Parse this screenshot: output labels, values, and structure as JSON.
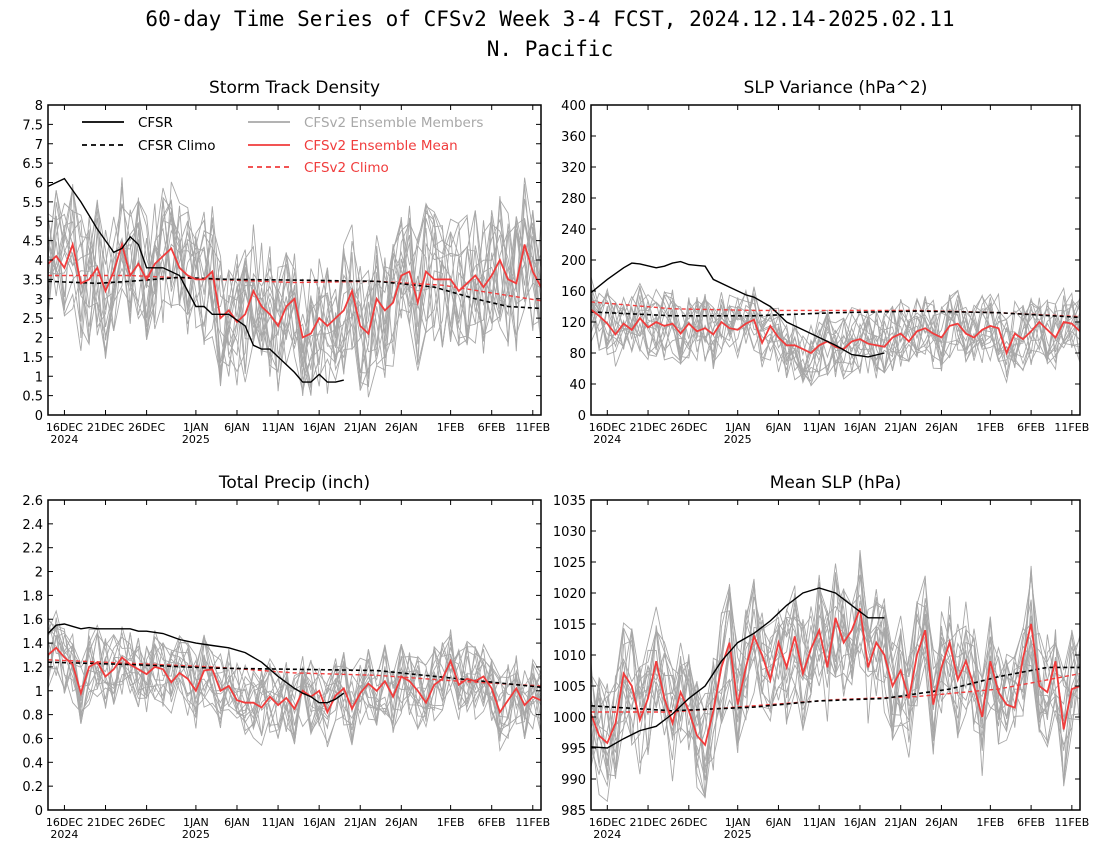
{
  "title": "60-day Time Series of CFSv2 Week 3-4 FCST, 2024.12.14-2025.02.11",
  "subtitle": "N. Pacific",
  "colors": {
    "cfsr": "#000000",
    "ensemble_member": "#a8a8a8",
    "ensemble_mean": "#f03c3c",
    "cfsv2_climo": "#f03c3c"
  },
  "legend": {
    "cfsr": "CFSR",
    "cfsr_climo": "CFSR Climo",
    "members": "CFSv2 Ensemble Members",
    "mean": "CFSv2 Ensemble Mean",
    "cfsv2_climo": "CFSv2 Climo"
  },
  "x_ticks": [
    {
      "label": "16DEC",
      "sub": "2024"
    },
    {
      "label": "21DEC",
      "sub": ""
    },
    {
      "label": "26DEC",
      "sub": ""
    },
    {
      "label": "1JAN",
      "sub": "2025"
    },
    {
      "label": "6JAN",
      "sub": ""
    },
    {
      "label": "11JAN",
      "sub": ""
    },
    {
      "label": "16JAN",
      "sub": ""
    },
    {
      "label": "21JAN",
      "sub": ""
    },
    {
      "label": "26JAN",
      "sub": ""
    },
    {
      "label": "1FEB",
      "sub": ""
    },
    {
      "label": "6FEB",
      "sub": ""
    },
    {
      "label": "11FEB",
      "sub": ""
    }
  ],
  "chart_data": [
    {
      "type": "line",
      "title": "Storm Track Density",
      "ylim": [
        0,
        8
      ],
      "yticks": [
        0,
        0.5,
        1,
        1.5,
        2,
        2.5,
        3,
        3.5,
        4,
        4.5,
        5,
        5.5,
        6,
        6.5,
        7,
        7.5,
        8
      ],
      "ytick_labels": [
        "0",
        "0.5",
        "1",
        "1.5",
        "2",
        "2.5",
        "3",
        "3.5",
        "4",
        "4.5",
        "5",
        "5.5",
        "6",
        "6.5",
        "7",
        "7.5",
        "8"
      ],
      "legend": true,
      "ensemble_spread": 1.1,
      "cfsr": {
        "days": [
          0,
          2,
          4,
          6,
          8,
          9,
          10,
          11,
          12,
          14,
          16,
          17,
          18,
          19,
          20,
          22,
          24,
          25,
          26,
          27,
          28,
          30,
          31,
          32,
          33,
          34,
          35,
          36
        ],
        "values": [
          5.9,
          6.1,
          5.5,
          4.8,
          4.2,
          4.3,
          4.6,
          4.4,
          3.8,
          3.8,
          3.6,
          3.2,
          2.8,
          2.8,
          2.6,
          2.6,
          2.3,
          1.8,
          1.7,
          1.7,
          1.5,
          1.1,
          0.85,
          0.85,
          1.05,
          0.85,
          0.85,
          0.9
        ]
      },
      "cfsr_climo": {
        "days": [
          0,
          6,
          10,
          16,
          22,
          30,
          40,
          47,
          52,
          56,
          60
        ],
        "values": [
          3.45,
          3.4,
          3.45,
          3.55,
          3.5,
          3.48,
          3.45,
          3.3,
          3.0,
          2.8,
          2.75
        ]
      },
      "cfsv2_climo": {
        "days": [
          0,
          10,
          20,
          30,
          40,
          48,
          54,
          60
        ],
        "values": [
          3.6,
          3.6,
          3.5,
          3.42,
          3.45,
          3.35,
          3.15,
          2.95
        ]
      },
      "ensemble_mean": {
        "days": [
          0,
          1,
          2,
          3,
          4,
          5,
          6,
          7,
          8,
          9,
          10,
          11,
          12,
          13,
          14,
          15,
          16,
          17,
          18,
          19,
          20,
          21,
          22,
          23,
          24,
          25,
          26,
          27,
          28,
          29,
          30,
          31,
          32,
          33,
          34,
          35,
          36,
          37,
          38,
          39,
          40,
          41,
          42,
          43,
          44,
          45,
          46,
          47,
          48,
          49,
          50,
          51,
          52,
          53,
          54,
          55,
          56,
          57,
          58,
          59,
          60
        ],
        "values": [
          3.9,
          4.1,
          3.8,
          4.4,
          3.4,
          3.5,
          3.8,
          3.2,
          3.7,
          4.4,
          3.6,
          3.9,
          3.5,
          3.9,
          4.1,
          4.3,
          3.8,
          3.6,
          3.5,
          3.5,
          3.7,
          2.5,
          2.7,
          2.4,
          2.6,
          3.2,
          2.8,
          2.6,
          2.3,
          2.8,
          3.0,
          2.0,
          2.1,
          2.5,
          2.3,
          2.5,
          2.7,
          3.2,
          2.3,
          2.1,
          3.0,
          2.7,
          2.9,
          3.6,
          3.7,
          2.9,
          3.7,
          3.5,
          3.5,
          3.5,
          3.2,
          3.4,
          3.6,
          3.3,
          3.6,
          4.0,
          3.5,
          3.4,
          4.4,
          3.7,
          3.3
        ]
      }
    },
    {
      "type": "line",
      "title": "SLP Variance (hPa^2)",
      "ylim": [
        0,
        400
      ],
      "yticks": [
        0,
        40,
        80,
        120,
        160,
        200,
        240,
        280,
        320,
        360,
        400
      ],
      "ytick_labels": [
        "0",
        "40",
        "80",
        "120",
        "160",
        "200",
        "240",
        "280",
        "320",
        "360",
        "400"
      ],
      "legend": false,
      "ensemble_spread": 28,
      "cfsr": {
        "days": [
          0,
          2,
          4,
          5,
          6,
          8,
          9,
          10,
          11,
          12,
          13,
          14,
          15,
          17,
          19,
          20,
          22,
          24,
          26,
          28,
          30,
          32,
          34,
          36
        ],
        "values": [
          158,
          175,
          190,
          196,
          195,
          190,
          192,
          196,
          198,
          194,
          193,
          192,
          175,
          165,
          155,
          152,
          140,
          120,
          110,
          100,
          90,
          78,
          75,
          80
        ]
      },
      "cfsr_climo": {
        "days": [
          0,
          10,
          20,
          30,
          40,
          50,
          60
        ],
        "values": [
          133,
          128,
          128,
          132,
          134,
          132,
          126
        ]
      },
      "cfsv2_climo": {
        "days": [
          0,
          10,
          20,
          30,
          40,
          50,
          60
        ],
        "values": [
          146,
          137,
          135,
          135,
          135,
          132,
          127
        ]
      },
      "ensemble_mean": {
        "days": [
          0,
          1,
          2,
          3,
          4,
          5,
          6,
          7,
          8,
          9,
          10,
          11,
          12,
          13,
          14,
          15,
          16,
          17,
          18,
          19,
          20,
          21,
          22,
          23,
          24,
          25,
          26,
          27,
          28,
          29,
          30,
          31,
          32,
          33,
          34,
          35,
          36,
          37,
          38,
          39,
          40,
          41,
          42,
          43,
          44,
          45,
          46,
          47,
          48,
          49,
          50,
          51,
          52,
          53,
          54,
          55,
          56,
          57,
          58,
          59,
          60
        ],
        "values": [
          136,
          128,
          118,
          104,
          118,
          110,
          125,
          113,
          120,
          115,
          118,
          105,
          118,
          108,
          112,
          104,
          120,
          112,
          110,
          118,
          123,
          93,
          115,
          100,
          90,
          90,
          85,
          80,
          90,
          95,
          88,
          85,
          95,
          98,
          92,
          90,
          88,
          100,
          105,
          95,
          108,
          112,
          105,
          100,
          115,
          118,
          105,
          100,
          110,
          115,
          112,
          80,
          105,
          98,
          108,
          120,
          110,
          100,
          120,
          118,
          108
        ]
      }
    },
    {
      "type": "line",
      "title": "Total Precip (inch)",
      "ylim": [
        0,
        2.6
      ],
      "yticks": [
        0,
        0.2,
        0.4,
        0.6,
        0.8,
        1,
        1.2,
        1.4,
        1.6,
        1.8,
        2,
        2.2,
        2.4,
        2.6
      ],
      "ytick_labels": [
        "0",
        "0.2",
        "0.4",
        "0.6",
        "0.8",
        "1",
        "1.2",
        "1.4",
        "1.6",
        "1.8",
        "2",
        "2.2",
        "2.4",
        "2.6"
      ],
      "legend": false,
      "ensemble_spread": 0.2,
      "cfsr": {
        "days": [
          0,
          1,
          2,
          3,
          4,
          5,
          6,
          8,
          10,
          11,
          12,
          14,
          16,
          18,
          20,
          22,
          24,
          26,
          27,
          28,
          29,
          30,
          31,
          32,
          33,
          34,
          35,
          36
        ],
        "values": [
          1.48,
          1.55,
          1.56,
          1.54,
          1.52,
          1.53,
          1.52,
          1.52,
          1.52,
          1.5,
          1.5,
          1.48,
          1.43,
          1.4,
          1.38,
          1.36,
          1.32,
          1.24,
          1.18,
          1.12,
          1.07,
          1.02,
          0.98,
          0.95,
          0.9,
          0.9,
          0.93,
          0.98
        ]
      },
      "cfsr_climo": {
        "days": [
          0,
          10,
          20,
          30,
          40,
          50,
          60
        ],
        "values": [
          1.24,
          1.22,
          1.19,
          1.18,
          1.17,
          1.1,
          1.03
        ]
      },
      "cfsv2_climo": {
        "days": [
          0,
          10,
          20,
          30,
          40,
          50,
          60
        ],
        "values": [
          1.26,
          1.23,
          1.2,
          1.15,
          1.13,
          1.08,
          1.04
        ]
      },
      "ensemble_mean": {
        "days": [
          0,
          1,
          2,
          3,
          4,
          5,
          6,
          7,
          8,
          9,
          10,
          11,
          12,
          13,
          14,
          15,
          16,
          17,
          18,
          19,
          20,
          21,
          22,
          23,
          24,
          25,
          26,
          27,
          28,
          29,
          30,
          31,
          32,
          33,
          34,
          35,
          36,
          37,
          38,
          39,
          40,
          41,
          42,
          43,
          44,
          45,
          46,
          47,
          48,
          49,
          50,
          51,
          52,
          53,
          54,
          55,
          56,
          57,
          58,
          59,
          60
        ],
        "values": [
          1.3,
          1.36,
          1.28,
          1.22,
          0.98,
          1.2,
          1.24,
          1.12,
          1.18,
          1.28,
          1.22,
          1.18,
          1.14,
          1.2,
          1.18,
          1.07,
          1.15,
          1.1,
          1.0,
          1.17,
          1.18,
          1.0,
          1.04,
          0.92,
          0.9,
          0.9,
          0.86,
          0.95,
          0.88,
          0.94,
          0.85,
          1.0,
          0.95,
          1.0,
          0.82,
          0.96,
          1.02,
          0.85,
          0.98,
          1.06,
          1.0,
          1.08,
          0.95,
          1.12,
          1.08,
          1.0,
          0.9,
          1.05,
          1.1,
          1.25,
          1.05,
          1.1,
          1.08,
          1.12,
          1.02,
          0.82,
          0.92,
          1.02,
          0.88,
          0.95,
          0.92
        ]
      }
    },
    {
      "type": "line",
      "title": "Mean SLP (hPa)",
      "ylim": [
        985,
        1035
      ],
      "yticks": [
        985,
        990,
        995,
        1000,
        1005,
        1010,
        1015,
        1020,
        1025,
        1030,
        1035
      ],
      "ytick_labels": [
        "985",
        "990",
        "995",
        "1000",
        "1005",
        "1010",
        "1015",
        "1020",
        "1025",
        "1030",
        "1035"
      ],
      "legend": false,
      "ensemble_spread": 6,
      "cfsr": {
        "days": [
          0,
          2,
          4,
          6,
          8,
          10,
          12,
          14,
          16,
          18,
          20,
          22,
          24,
          26,
          28,
          30,
          32,
          34,
          36
        ],
        "values": [
          995.2,
          995.0,
          996.5,
          997.8,
          998.5,
          1000.5,
          1003.0,
          1005.0,
          1009.0,
          1012.0,
          1013.5,
          1015.5,
          1018.0,
          1020.0,
          1020.8,
          1020.0,
          1018.0,
          1016.0,
          1016.0
        ]
      },
      "cfsr_climo": {
        "days": [
          0,
          10,
          20,
          28,
          36,
          44,
          50,
          56,
          60
        ],
        "values": [
          1001.8,
          1001.0,
          1001.6,
          1002.6,
          1003.0,
          1004.5,
          1006.5,
          1008.0,
          1008.0
        ]
      },
      "cfsv2_climo": {
        "days": [
          0,
          10,
          20,
          30,
          40,
          50,
          60
        ],
        "values": [
          1000.8,
          1000.8,
          1001.8,
          1002.8,
          1003.3,
          1004.5,
          1007.0
        ]
      },
      "ensemble_mean": {
        "days": [
          0,
          1,
          2,
          3,
          4,
          5,
          6,
          7,
          8,
          9,
          10,
          11,
          12,
          13,
          14,
          15,
          16,
          17,
          18,
          19,
          20,
          21,
          22,
          23,
          24,
          25,
          26,
          27,
          28,
          29,
          30,
          31,
          32,
          33,
          34,
          35,
          36,
          37,
          38,
          39,
          40,
          41,
          42,
          43,
          44,
          45,
          46,
          47,
          48,
          49,
          50,
          51,
          52,
          53,
          54,
          55,
          56,
          57,
          58,
          59,
          60
        ],
        "values": [
          1000.5,
          997.0,
          995.8,
          999.0,
          1007.0,
          1005.0,
          999.5,
          1003.0,
          1009.0,
          1003.0,
          999.0,
          1004.0,
          1001.0,
          997.0,
          995.5,
          1001.0,
          1008.0,
          1012.0,
          1002.0,
          1008.0,
          1013.0,
          1010.0,
          1006.0,
          1012.0,
          1008.0,
          1013.0,
          1007.0,
          1011.0,
          1014.0,
          1008.0,
          1016.0,
          1012.0,
          1014.0,
          1017.5,
          1008.0,
          1012.0,
          1010.0,
          1005.0,
          1007.5,
          1003.0,
          1010.0,
          1014.0,
          1002.0,
          1008.0,
          1012.0,
          1006.0,
          1009.0,
          1005.0,
          1000.0,
          1009.0,
          1004.0,
          1002.0,
          1001.5,
          1009.5,
          1015.0,
          1005.0,
          1004.0,
          1009.0,
          998.0,
          1004.5,
          1005.0
        ]
      }
    }
  ]
}
